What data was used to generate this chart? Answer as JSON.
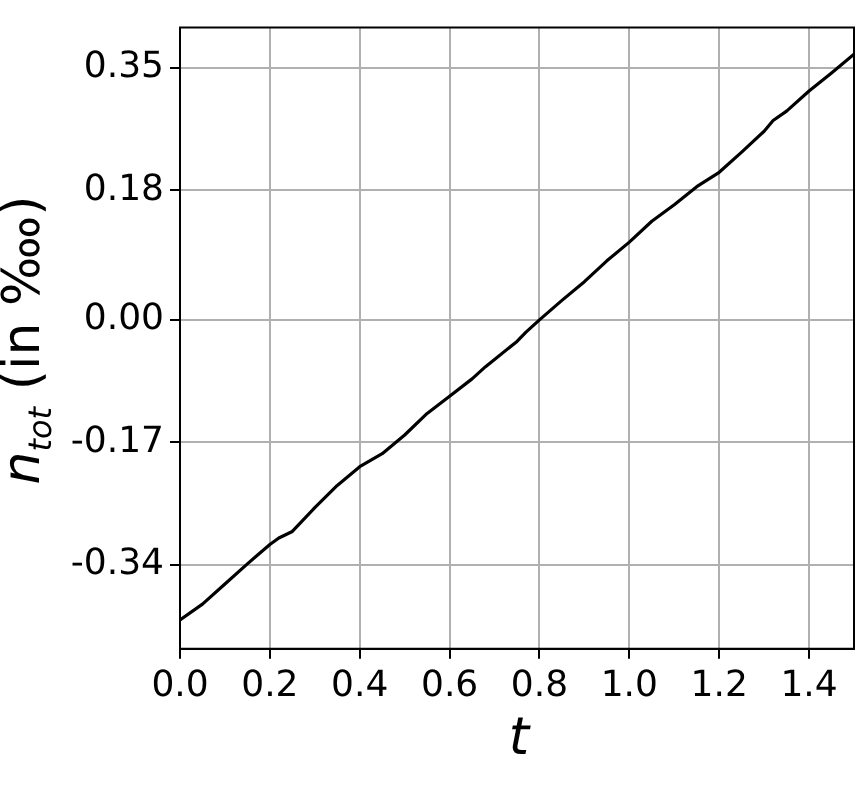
{
  "chart_data": {
    "type": "line",
    "xlabel": "t",
    "ylabel": "n$_{tot}$ (in ‱)",
    "x": [
      0,
      0.05,
      0.1,
      0.15,
      0.2,
      0.22,
      0.25,
      0.3,
      0.35,
      0.4,
      0.45,
      0.5,
      0.55,
      0.6,
      0.65,
      0.68,
      0.7,
      0.75,
      0.77,
      0.8,
      0.85,
      0.9,
      0.95,
      1.0,
      1.05,
      1.1,
      1.15,
      1.2,
      1.25,
      1.3,
      1.32,
      1.35,
      1.4,
      1.45,
      1.5
    ],
    "series": [
      {
        "color": "#000000",
        "values": [
          -0.417,
          -0.395,
          -0.367,
          -0.339,
          -0.312,
          -0.303,
          -0.294,
          -0.261,
          -0.23,
          -0.204,
          -0.186,
          -0.16,
          -0.13,
          -0.106,
          -0.082,
          -0.065,
          -0.055,
          -0.03,
          -0.017,
          0.0,
          0.027,
          0.053,
          0.082,
          0.108,
          0.137,
          0.16,
          0.185,
          0.205,
          0.233,
          0.262,
          0.277,
          0.29,
          0.318,
          0.343,
          0.369
        ]
      }
    ],
    "xlim": [
      0,
      1.5
    ],
    "xticks": [
      {
        "value": 0,
        "label": "0.0"
      },
      {
        "value": 0.2,
        "label": "0.2"
      },
      {
        "value": 0.4,
        "label": "0.4"
      },
      {
        "value": 0.6,
        "label": "0.6"
      },
      {
        "value": 0.8,
        "label": "0.8"
      },
      {
        "value": 1,
        "label": "1.0"
      },
      {
        "value": 1.2,
        "label": "1.2"
      },
      {
        "value": 1.4,
        "label": "1.4"
      }
    ],
    "ylim": [
      -0.457,
      0.406
    ],
    "yticks": [
      -0.34,
      -0.17,
      {
        "value": 0,
        "label": "0.00"
      },
      0.18,
      0.35
    ],
    "grid": true,
    "legend": false,
    "marker": "none",
    "line_style": "solid"
  }
}
